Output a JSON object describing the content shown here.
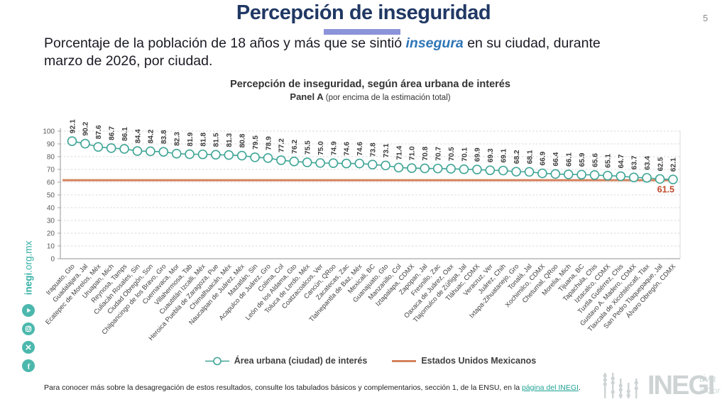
{
  "page": {
    "number": "5"
  },
  "header": {
    "title": "Percepción de inseguridad"
  },
  "subtitle": {
    "before_highlight": "Porcentaje de la población de 18 años y más que se sintió ",
    "highlight": "insegura",
    "after_highlight": " en su ciudad, durante",
    "line2": "marzo de 2026, por ciudad."
  },
  "chart_heading": {
    "title": "Percepción de inseguridad, según área urbana de interés",
    "panel_label": "Panel A",
    "panel_note": " (por encima de la estimación total)"
  },
  "chart_data": {
    "type": "line",
    "title": "Percepción de inseguridad, según área urbana de interés",
    "categories": [
      "Irapuato, Gto",
      "Guadalajara, Jal",
      "Ecatepec de Morelos, Méx",
      "Uruapan, Mich",
      "Reynosa, Tamps",
      "Culiacán Rosales, Sin",
      "Ciudad Obregón, Son",
      "Chilpancingo de los Bravo, Gro",
      "Cuernavaca, Mor",
      "Villahermosa, Tab",
      "Cuautitlán Izcalli, Méx",
      "Heroica Puebla de Zaragoza, Pue",
      "Chimalhuacán, Méx",
      "Naucalpan de Juárez, Méx",
      "Mazatlán, Sin",
      "Acapulco de Juárez, Gro",
      "Colima, Col",
      "León de los Aldama, Gto",
      "Toluca de Lerdo, Méx",
      "Coatzacoalcos, Ver",
      "Cancún, QRoo",
      "Zacatecas, Zac",
      "Tlalnepantla de Baz, Méx",
      "Mexicali, BC",
      "Guanajuato, Gto",
      "Manzanillo, Col",
      "Iztapalapa, CDMX",
      "Zapopan, Jal",
      "Fresnillo, Zac",
      "Oaxaca de Juárez, Oax",
      "Tlajomulco de Zúñiga, Jal",
      "Tláhuac, CDMX",
      "Veracruz, Ver",
      "Juárez, Chih",
      "Ixtapa-Zihuatanejo, Gro",
      "Tonalá, Jal",
      "Xochimilco, CDMX",
      "Chetumal, QRoo",
      "Morelia, Mich",
      "Tijuana, BC",
      "Tapachula, Chis",
      "Iztacalco, CDMX",
      "Tuxtla Gutiérrez, Chis",
      "Gustavo A. Madero, CDMX",
      "Tlaxcala de Xicohténcatl, Tlax",
      "San Pedro Tlaquepaque, Jal",
      "Álvaro Obregón, CDMX"
    ],
    "series": [
      {
        "name": "Área urbana (ciudad) de interés",
        "marker": "open-circle",
        "color": "#3fa596",
        "values": [
          92.1,
          90.2,
          87.6,
          86.7,
          86.1,
          84.4,
          84.2,
          83.8,
          82.3,
          81.9,
          81.8,
          81.5,
          81.3,
          80.8,
          79.5,
          78.9,
          77.2,
          76.2,
          75.5,
          75.0,
          74.9,
          74.6,
          74.6,
          73.8,
          73.1,
          71.4,
          71.0,
          70.8,
          70.7,
          70.5,
          70.1,
          69.9,
          69.3,
          69.1,
          68.2,
          68.1,
          66.9,
          66.4,
          66.1,
          65.9,
          65.6,
          65.1,
          64.7,
          63.7,
          63.4,
          62.5,
          62.1
        ]
      }
    ],
    "reference_line": {
      "name": "Estados Unidos Mexicanos",
      "value": 61.5,
      "label": "61.5",
      "color": "#d5825e",
      "label_color": "#c0492a"
    },
    "ylim": [
      0,
      100
    ],
    "yticks": [
      0,
      10,
      20,
      30,
      40,
      50,
      60,
      70,
      80,
      90,
      100
    ],
    "grid": true,
    "legend_position": "bottom",
    "xlabel": "",
    "ylabel": ""
  },
  "legend": {
    "series_label": "Área urbana (ciudad) de interés",
    "reference_label": "Estados Unidos Mexicanos"
  },
  "footer": {
    "before_link": "Para conocer más sobre la desagregación de estos resultados, consulte los tabulados básicos y complementarios, sección 1, de la ENSU, en la ",
    "link": "página del INEGI",
    "after_link": "."
  },
  "sidebar": {
    "site_bold": "inegi",
    "site_rest": ".org.mx",
    "icons": [
      "youtube-icon",
      "instagram-icon",
      "x-icon",
      "facebook-icon"
    ]
  },
  "logo": {
    "text": "INEGI",
    "watermark_line1": "tiva",
    "watermark_line2": "a Cor"
  },
  "colors": {
    "title_navy": "#203864",
    "accent_bar": "#8b93d9",
    "highlight_blue": "#2e75b6",
    "teal_series": "#3fa596",
    "orange_reference": "#d5825e",
    "reference_label": "#c0492a",
    "link_teal": "#1fa294",
    "social_teal": "#4cb8ad",
    "logo_gray": "#ced3d4"
  }
}
